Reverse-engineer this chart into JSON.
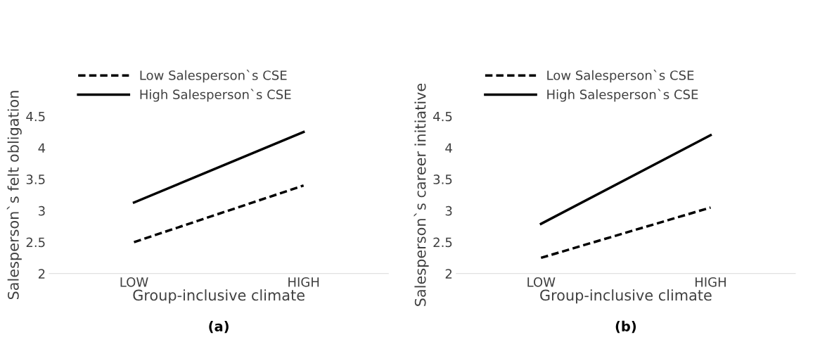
{
  "chart_data": [
    {
      "type": "line",
      "categories": [
        "LOW",
        "HIGH"
      ],
      "xlabel": "Group-inclusive climate",
      "ylabel": "Salesperson`s felt obligation",
      "ylim": [
        2,
        4.5
      ],
      "yticks": [
        2,
        2.5,
        3,
        3.5,
        4,
        4.5
      ],
      "legend": "top",
      "grid": false,
      "annotations": [
        "(a)"
      ],
      "series": [
        {
          "name": "Low Salesperson`s CSE",
          "color": "#000000",
          "line_style": "dashed",
          "values": [
            2.5,
            3.4
          ]
        },
        {
          "name": "High Salesperson`s CSE",
          "color": "#000000",
          "line_style": "solid",
          "values": [
            3.13,
            4.25
          ]
        }
      ]
    },
    {
      "type": "line",
      "categories": [
        "LOW",
        "HIGH"
      ],
      "xlabel": "Group-inclusive climate",
      "ylabel": "Salesperson`s career initiative",
      "ylim": [
        2,
        4.5
      ],
      "yticks": [
        2,
        2.5,
        3,
        3.5,
        4,
        4.5
      ],
      "legend": "top",
      "grid": false,
      "annotations": [
        "(b)"
      ],
      "series": [
        {
          "name": "Low Salesperson`s CSE",
          "color": "#000000",
          "line_style": "dashed",
          "values": [
            2.25,
            3.05
          ]
        },
        {
          "name": "High Salesperson`s CSE",
          "color": "#000000",
          "line_style": "solid",
          "values": [
            2.79,
            4.2
          ]
        }
      ]
    }
  ]
}
